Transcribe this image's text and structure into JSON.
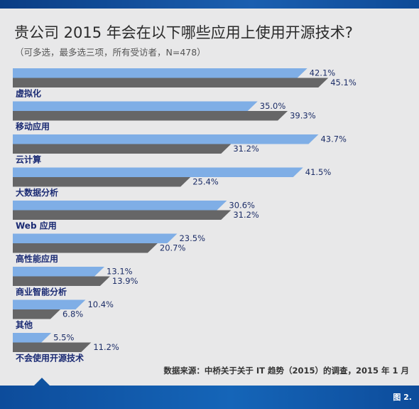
{
  "title": "贵公司 2015 年会在以下哪些应用上使用开源技术?",
  "subtitle": "（可多选，最多选三项，所有受访者，N=478）",
  "source": "数据来源：中桥关于关于 IT 趋势（2015）的调查，2015 年 1 月",
  "figure_label": "图 2.",
  "colors": {
    "series_a": "#7faee6",
    "series_b": "#666667",
    "panel": "#e8e8e9",
    "brand_blue": "#0d4c9b"
  },
  "chart_data": {
    "type": "bar",
    "orientation": "horizontal",
    "categories": [
      "虚拟化",
      "移动应用",
      "云计算",
      "大数据分析",
      "Web 应用",
      "高性能应用",
      "商业智能分析",
      "其他",
      "不会使用开源技术"
    ],
    "series": [
      {
        "values": [
          42.1,
          35.0,
          43.7,
          41.5,
          30.6,
          23.5,
          13.1,
          10.4,
          5.5
        ],
        "labels": [
          "42.1%",
          "35.0%",
          "43.7%",
          "41.5%",
          "30.6%",
          "23.5%",
          "13.1%",
          "10.4%",
          "5.5%"
        ]
      },
      {
        "values": [
          45.1,
          39.3,
          31.2,
          25.4,
          31.2,
          20.7,
          13.9,
          6.8,
          11.2
        ],
        "labels": [
          "45.1%",
          "39.3%",
          "31.2%",
          "25.4%",
          "31.2%",
          "20.7%",
          "13.9%",
          "6.8%",
          "11.2%"
        ]
      }
    ],
    "xlim": [
      0,
      50
    ],
    "grid": false,
    "legend": "none",
    "value_format": "percent"
  }
}
